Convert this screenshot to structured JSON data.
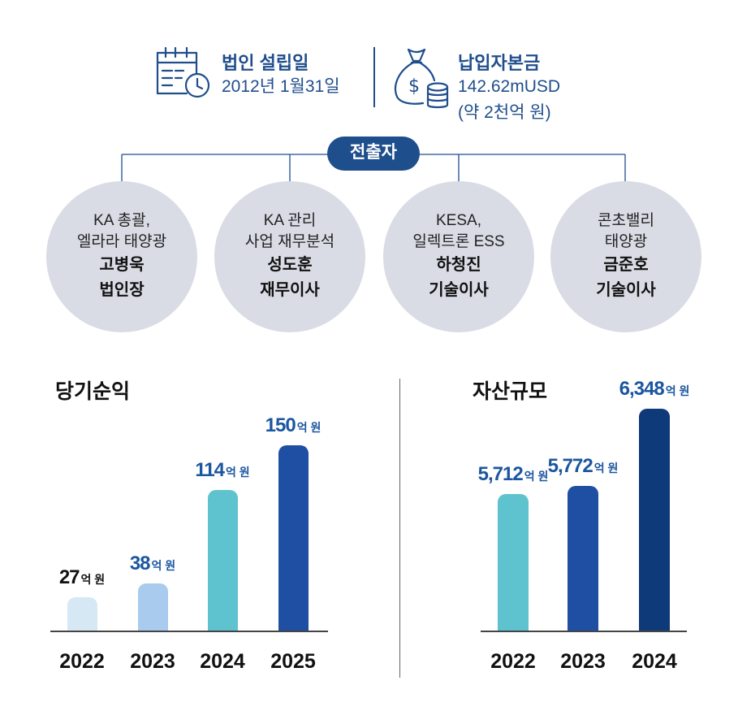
{
  "founding": {
    "title": "법인 설립일",
    "value": "2012년 1월31일",
    "icon": "calendar-clock-icon"
  },
  "capital": {
    "title": "납입자본금",
    "value_line1": "142.62mUSD",
    "value_line2": "(약 2천억 원)",
    "icon": "money-bag-icon"
  },
  "investors": {
    "label": "전출자",
    "people": [
      {
        "line1": "KA 총괄,",
        "line2": "엘라라 태양광",
        "name": "고병욱",
        "role": "법인장"
      },
      {
        "line1": "KA 관리",
        "line2": "사업 재무분석",
        "name": "성도훈",
        "role": "재무이사"
      },
      {
        "line1": "KESA,",
        "line2": "일렉트론 ESS",
        "name": "하청진",
        "role": "기술이사"
      },
      {
        "line1": "콘초밸리",
        "line2": "태양광",
        "name": "금준호",
        "role": "기술이사"
      }
    ]
  },
  "colors": {
    "brand_blue": "#1f4e8c",
    "label_blue": "#1b56a0"
  },
  "chart_data": [
    {
      "type": "bar",
      "title": "당기순익",
      "categories": [
        "2022",
        "2023",
        "2024",
        "2025"
      ],
      "values": [
        27,
        38,
        114,
        150
      ],
      "value_labels": [
        "27",
        "38",
        "114",
        "150"
      ],
      "unit": "억 원",
      "bar_colors": [
        "#d6e8f4",
        "#a9cbee",
        "#5ec3cf",
        "#1e4fa3"
      ],
      "label_colors": [
        "#111111",
        "#1b56a0",
        "#1b56a0",
        "#1b56a0"
      ]
    },
    {
      "type": "bar",
      "title": "자산규모",
      "categories": [
        "2022",
        "2023",
        "2024"
      ],
      "values": [
        5712,
        5772,
        6348
      ],
      "value_labels": [
        "5,712",
        "5,772",
        "6,348"
      ],
      "unit": "억 원",
      "bar_colors": [
        "#5ec3cf",
        "#1e4fa3",
        "#0f3a7a"
      ],
      "label_colors": [
        "#1b56a0",
        "#1b56a0",
        "#1b56a0"
      ]
    }
  ]
}
